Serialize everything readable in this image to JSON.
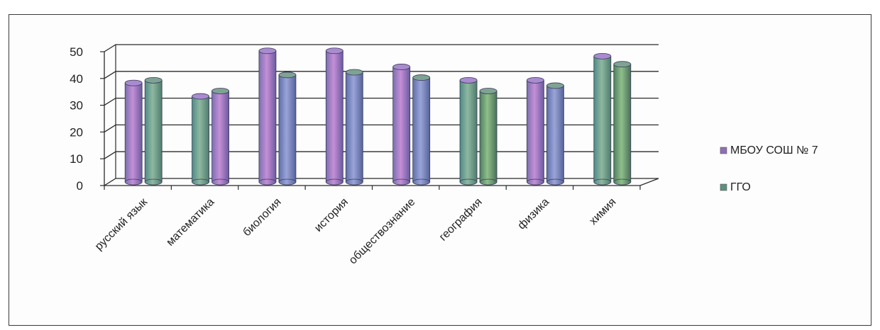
{
  "chart_data": {
    "type": "bar",
    "categories": [
      "русский язык",
      "математика",
      "биология",
      "история",
      "обществознание",
      "география",
      "физика",
      "химия"
    ],
    "series": [
      {
        "name": "МБОУ СОШ № 7",
        "values": [
          37,
          32,
          49,
          49,
          43,
          38,
          38,
          47
        ]
      },
      {
        "name": "ГГО",
        "values": [
          38,
          34,
          40,
          41,
          39,
          34,
          36,
          44
        ]
      }
    ],
    "yticks": [
      0,
      10,
      20,
      30,
      40,
      50
    ],
    "ylim": [
      0,
      50
    ],
    "grid": true,
    "legend": "right",
    "colors": [
      "#8f6fb3",
      "#5f8f7f"
    ]
  }
}
